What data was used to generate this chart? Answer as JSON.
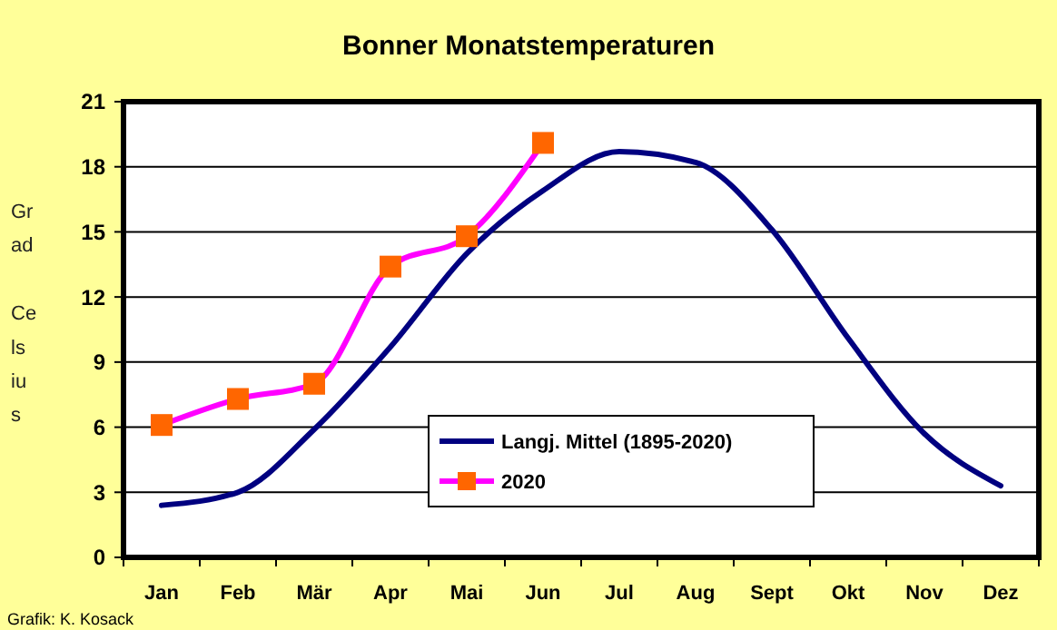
{
  "chart_data": {
    "type": "line",
    "title": "Bonner Monatstemperaturen",
    "ylabel": "Grad Celsius",
    "categories": [
      "Jan",
      "Feb",
      "Mär",
      "Apr",
      "Mai",
      "Jun",
      "Jul",
      "Aug",
      "Sept",
      "Okt",
      "Nov",
      "Dez"
    ],
    "series": [
      {
        "name": "Langj. Mittel (1895-2020)",
        "color": "#000080",
        "values": [
          2.4,
          3.0,
          5.9,
          9.7,
          14.0,
          16.9,
          18.7,
          18.2,
          15.1,
          10.1,
          5.7,
          3.3
        ],
        "marker": "none"
      },
      {
        "name": "2020",
        "color": "#ff00ff",
        "colors": [
          "#ff6600",
          "#ff6600",
          "#ff6600",
          "#ff6600",
          "#ff6600",
          "#ff6600",
          null,
          null,
          null,
          null,
          null,
          null
        ],
        "values": [
          6.1,
          7.3,
          8.0,
          13.4,
          14.8,
          19.1,
          null,
          null,
          null,
          null,
          null,
          null
        ],
        "marker": "square"
      }
    ],
    "ylim": [
      0,
      21
    ],
    "yticks": [
      0,
      3,
      6,
      9,
      12,
      15,
      18,
      21
    ],
    "grid": "y",
    "legend": "bottom",
    "annotations": [
      "Grafik: K. Kosack"
    ]
  }
}
